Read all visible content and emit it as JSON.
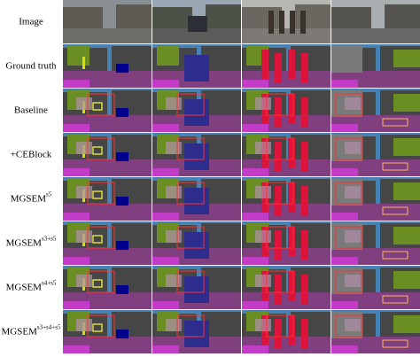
{
  "rows": [
    {
      "label": "Image"
    },
    {
      "label": "Ground truth"
    },
    {
      "label": "Baseline"
    },
    {
      "label": "+CEBlock"
    },
    {
      "label": "MGSEM",
      "superscript": "s5"
    },
    {
      "label": "MGSEM",
      "superscript": "s3+s5"
    },
    {
      "label": "MGSEM",
      "superscript": "s4+s5"
    },
    {
      "label": "MGSEM",
      "superscript": "s3+s4+s5"
    }
  ]
}
